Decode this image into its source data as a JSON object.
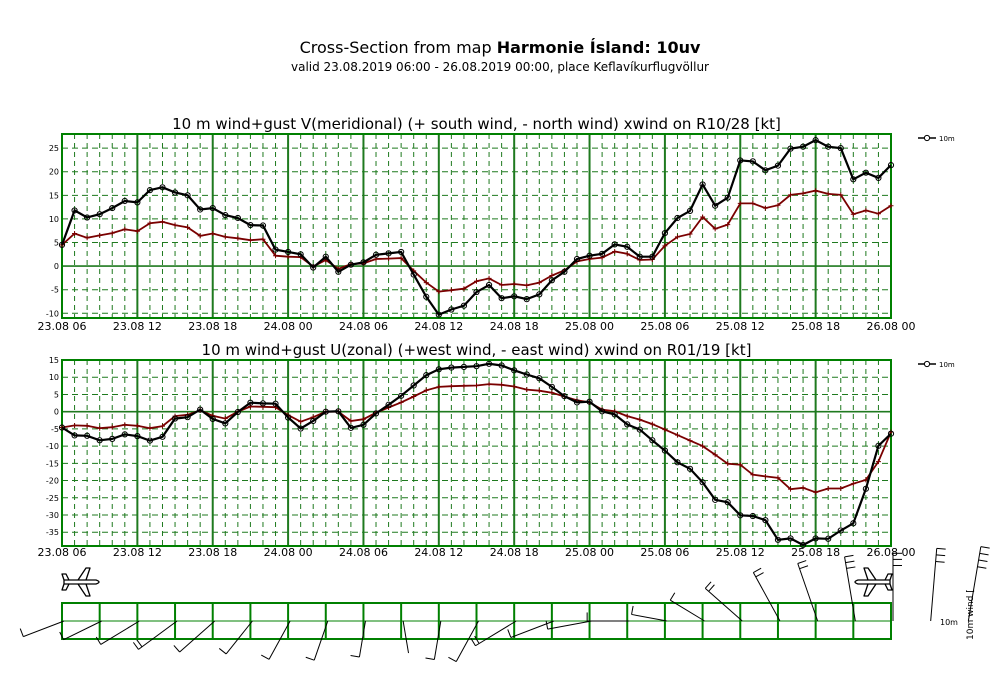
{
  "header": {
    "title_prefix": "Cross-Section from map ",
    "title_bold": "Harmonie Ísland: 10uv",
    "subtitle": "valid 23.08.2019 06:00 - 26.08.2019 00:00, place Keflavíkurflugvöllur"
  },
  "legend_label": "10m",
  "side_labels": {
    "level": "10m",
    "wind": "10m wind ["
  },
  "colors": {
    "wind_line": "#000000",
    "gust_line": "#7a0000",
    "grid": "#1f7a1f",
    "frame": "#008000"
  },
  "x_ticks": [
    "23.08 06",
    "23.08 12",
    "23.08 18",
    "24.08 00",
    "24.08 06",
    "24.08 12",
    "24.08 18",
    "25.08 00",
    "25.08 06",
    "25.08 12",
    "25.08 18",
    "26.08 00"
  ],
  "chart_data": [
    {
      "type": "line",
      "title": "10 m wind+gust V(meridional) (+ south wind, - north wind) xwind on R10/28 [kt]",
      "x_start": "23.08.2019 06:00",
      "x_step_hours": 1,
      "ylim": [
        -11,
        28
      ],
      "y_ticks": [
        25,
        20,
        15,
        10,
        5,
        0,
        -5,
        -10
      ],
      "grid": true,
      "series": [
        {
          "name": "10m",
          "values": [
            4.5,
            11.8,
            10.3,
            11,
            12.3,
            13.8,
            13.5,
            16.1,
            16.7,
            15.6,
            15,
            12,
            12.3,
            10.8,
            10.2,
            8.7,
            8.6,
            3.5,
            3,
            2.5,
            -0.3,
            2,
            -1.2,
            0.3,
            0.8,
            2.4,
            2.7,
            3,
            -1.8,
            -6.5,
            -10.3,
            -9.2,
            -8.4,
            -5.5,
            -4,
            -6.8,
            -6.4,
            -7,
            -6,
            -3,
            -1.2,
            1.5,
            2.2,
            2.6,
            4.6,
            4.1,
            2,
            2,
            7,
            10.2,
            11.7,
            17.3,
            12.8,
            14.5,
            22.4,
            22.2,
            20.3,
            21.3,
            24.9,
            25.3,
            26.7,
            25.3,
            25,
            18.4,
            19.8,
            18.7,
            21.4
          ]
        },
        {
          "name": "",
          "values": [
            4.5,
            6.9,
            6,
            6.5,
            7,
            7.8,
            7.4,
            9.1,
            9.4,
            8.7,
            8.2,
            6.4,
            6.9,
            6.2,
            5.9,
            5.5,
            5.7,
            2.2,
            2,
            1.9,
            -0.1,
            1.3,
            -0.6,
            0.4,
            0.6,
            1.5,
            1.6,
            1.7,
            -1,
            -3.5,
            -5.4,
            -5.1,
            -4.8,
            -3.2,
            -2.6,
            -4,
            -3.8,
            -4.1,
            -3.5,
            -2,
            -0.9,
            1,
            1.5,
            1.8,
            3.1,
            2.6,
            1.3,
            1.4,
            4.3,
            6.2,
            6.8,
            10.4,
            7.9,
            8.8,
            13.3,
            13.3,
            12.3,
            12.9,
            15.1,
            15.4,
            16,
            15.3,
            15.1,
            11,
            11.8,
            11.1,
            12.8
          ]
        }
      ]
    },
    {
      "type": "line",
      "title": "10 m wind+gust U(zonal) (+west wind, - east wind) xwind on R01/19 [kt]",
      "x_start": "23.08.2019 06:00",
      "x_step_hours": 1,
      "ylim": [
        -39,
        15
      ],
      "y_ticks": [
        15,
        10,
        5,
        0,
        -5,
        -10,
        -15,
        -20,
        -25,
        -30,
        -35
      ],
      "grid": true,
      "series": [
        {
          "name": "10m",
          "values": [
            -4.6,
            -6.9,
            -7,
            -8.3,
            -7.9,
            -6.6,
            -7.1,
            -8.4,
            -7.3,
            -2,
            -1.6,
            0.6,
            -2.1,
            -3.4,
            -0.1,
            2.6,
            2.4,
            2.3,
            -1.7,
            -4.9,
            -2.7,
            0,
            0.1,
            -4.7,
            -3.8,
            -0.5,
            2,
            4.6,
            7.6,
            10.6,
            12.3,
            12.8,
            13,
            13.2,
            13.9,
            13.4,
            12,
            10.8,
            9.7,
            7.2,
            4.5,
            2.7,
            2.9,
            0.1,
            -0.8,
            -3.7,
            -5.2,
            -8.3,
            -11.3,
            -14.7,
            -16.6,
            -20.5,
            -25.6,
            -26.3,
            -30.1,
            -30.3,
            -31.5,
            -37.2,
            -36.8,
            -38.7,
            -36.8,
            -36.9,
            -34.5,
            -32.4,
            -22.4,
            -9.9,
            -6.4
          ]
        },
        {
          "name": "",
          "values": [
            -4.6,
            -4,
            -4.1,
            -4.8,
            -4.5,
            -3.8,
            -4.1,
            -4.8,
            -4.2,
            -1.3,
            -0.9,
            0.4,
            -1.2,
            -2,
            0,
            1.5,
            1.4,
            1.3,
            -1,
            -2.9,
            -1.6,
            0,
            0,
            -2.7,
            -2.2,
            -0.3,
            1.2,
            2.7,
            4.4,
            6.2,
            7.2,
            7.4,
            7.5,
            7.6,
            8,
            7.8,
            7.3,
            6.4,
            6.1,
            5.5,
            4.4,
            3.3,
            2.7,
            0.6,
            0.1,
            -1.3,
            -2.3,
            -3.6,
            -5.2,
            -6.8,
            -8.4,
            -10,
            -12.5,
            -15.1,
            -15.4,
            -18.3,
            -18.8,
            -19.2,
            -22.5,
            -22.1,
            -23.4,
            -22.3,
            -22.3,
            -20.9,
            -19.8,
            -14.5,
            -5.9
          ]
        }
      ]
    },
    {
      "type": "line",
      "title": "",
      "x_start": "23.08.2019 06:00",
      "x_step_hours": 3,
      "series": [
        {
          "name": "10m",
          "speed_kt": [
            12,
            11,
            13,
            15,
            14,
            10,
            11,
            9,
            5,
            2,
            7,
            13,
            15,
            14,
            13,
            11,
            6,
            9,
            16,
            20,
            24,
            27,
            29,
            33,
            35,
            37,
            39,
            40
          ]
        },
        {
          "name": "",
          "direction_deg": [
            290,
            295,
            300,
            305,
            310,
            320,
            330,
            340,
            350,
            10,
            350,
            330,
            300,
            290,
            280,
            270,
            260,
            240,
            230,
            210,
            200,
            190,
            180,
            175,
            170,
            165,
            160,
            160
          ]
        }
      ]
    }
  ]
}
